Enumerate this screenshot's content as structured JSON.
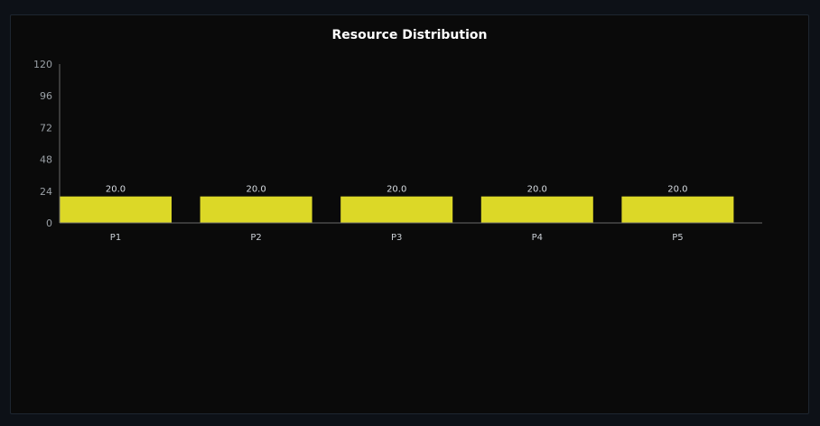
{
  "chart_data": {
    "type": "bar",
    "title": "Resource Distribution",
    "categories": [
      "P1",
      "P2",
      "P3",
      "P4",
      "P5"
    ],
    "values": [
      20.0,
      20.0,
      20.0,
      20.0,
      20.0
    ],
    "value_labels": [
      "20.0",
      "20.0",
      "20.0",
      "20.0",
      "20.0"
    ],
    "yticks": [
      0,
      24,
      48,
      72,
      96,
      120
    ],
    "ylim": [
      0,
      120
    ],
    "xlabel": "",
    "ylabel": "",
    "grid": false,
    "bar_color": "#dcd827",
    "axis_color": "#6b6b6b"
  }
}
